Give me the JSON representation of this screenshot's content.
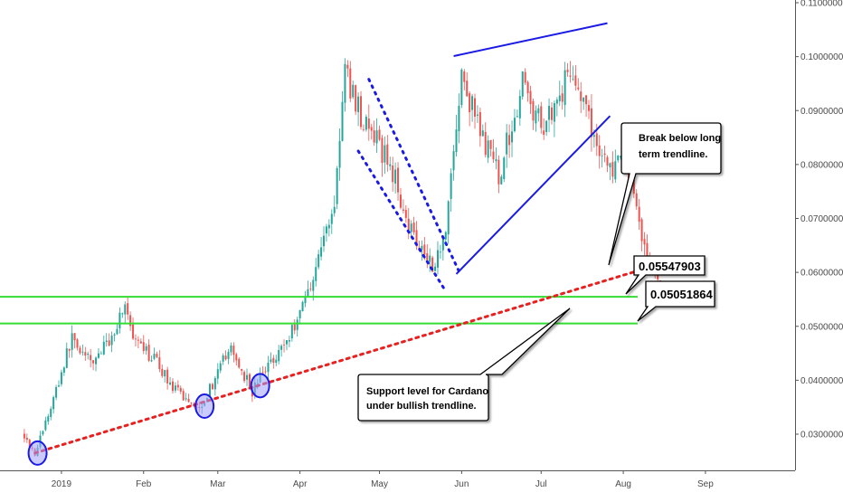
{
  "chart_data": {
    "type": "candlestick",
    "x_ticks": [
      "2019",
      "Feb",
      "Mar",
      "Apr",
      "May",
      "Jun",
      "Jul",
      "Aug",
      "Sep"
    ],
    "y_ticks": [
      "0.11000000",
      "0.10000000",
      "0.09000000",
      "0.08000000",
      "0.07000000",
      "0.06000000",
      "0.05000000",
      "0.04000000",
      "0.03000000"
    ],
    "ylim": [
      0.0228,
      0.1117
    ],
    "grid": false,
    "colors": {
      "up": "#26a69a",
      "down": "#ef5350",
      "support": "#33dd33",
      "trendline": "#e82020",
      "pattern": "#1a1ae6"
    },
    "anchors": [
      {
        "date": "2018-12-18",
        "value": 0.03
      },
      {
        "date": "2018-12-22",
        "value": 0.0265
      },
      {
        "date": "2018-12-28",
        "value": 0.035
      },
      {
        "date": "2019-01-05",
        "value": 0.048
      },
      {
        "date": "2019-01-12",
        "value": 0.043
      },
      {
        "date": "2019-01-20",
        "value": 0.048
      },
      {
        "date": "2019-01-25",
        "value": 0.0545
      },
      {
        "date": "2019-01-28",
        "value": 0.047
      },
      {
        "date": "2019-02-05",
        "value": 0.044
      },
      {
        "date": "2019-02-13",
        "value": 0.038
      },
      {
        "date": "2019-02-22",
        "value": 0.035
      },
      {
        "date": "2019-03-01",
        "value": 0.041
      },
      {
        "date": "2019-03-05",
        "value": 0.046
      },
      {
        "date": "2019-03-10",
        "value": 0.042
      },
      {
        "date": "2019-03-14",
        "value": 0.038
      },
      {
        "date": "2019-03-20",
        "value": 0.043
      },
      {
        "date": "2019-03-28",
        "value": 0.048
      },
      {
        "date": "2019-04-05",
        "value": 0.058
      },
      {
        "date": "2019-04-14",
        "value": 0.073
      },
      {
        "date": "2019-04-18",
        "value": 0.097
      },
      {
        "date": "2019-04-25",
        "value": 0.088
      },
      {
        "date": "2019-05-05",
        "value": 0.08
      },
      {
        "date": "2019-05-13",
        "value": 0.068
      },
      {
        "date": "2019-05-22",
        "value": 0.061
      },
      {
        "date": "2019-05-26",
        "value": 0.069
      },
      {
        "date": "2019-06-01",
        "value": 0.096
      },
      {
        "date": "2019-06-08",
        "value": 0.086
      },
      {
        "date": "2019-06-15",
        "value": 0.078
      },
      {
        "date": "2019-06-24",
        "value": 0.095
      },
      {
        "date": "2019-07-01",
        "value": 0.087
      },
      {
        "date": "2019-07-08",
        "value": 0.093
      },
      {
        "date": "2019-07-13",
        "value": 0.098
      },
      {
        "date": "2019-07-18",
        "value": 0.089
      },
      {
        "date": "2019-07-22",
        "value": 0.084
      },
      {
        "date": "2019-07-27",
        "value": 0.079
      },
      {
        "date": "2019-08-01",
        "value": 0.08
      },
      {
        "date": "2019-08-05",
        "value": 0.075
      },
      {
        "date": "2019-08-10",
        "value": 0.062
      },
      {
        "date": "2019-08-14",
        "value": 0.059
      },
      {
        "date": "2019-08-15",
        "value": 0.0585
      }
    ],
    "support_levels": [
      0.05547903,
      0.05051864
    ],
    "price_labels": [
      "0.05547903",
      "0.05051864"
    ],
    "uptrend_line": {
      "start": {
        "date": "2018-12-22",
        "value": 0.0265
      },
      "end": {
        "date": "2019-08-18",
        "value": 0.062
      }
    },
    "channel_lines": [
      {
        "start": {
          "date": "2019-04-27",
          "value": 0.0958
        },
        "end": {
          "date": "2019-05-31",
          "value": 0.0602
        }
      },
      {
        "start": {
          "date": "2019-04-23",
          "value": 0.0825
        },
        "end": {
          "date": "2019-05-26",
          "value": 0.0565
        }
      }
    ],
    "wedge_lines": [
      {
        "start": {
          "date": "2019-05-29",
          "value": 0.1001
        },
        "end": {
          "date": "2019-07-26",
          "value": 0.1062
        }
      },
      {
        "start": {
          "date": "2019-05-30",
          "value": 0.0597
        },
        "end": {
          "date": "2019-07-27",
          "value": 0.089
        }
      }
    ],
    "circled_lows": [
      {
        "date": "2018-12-23",
        "value": 0.0265
      },
      {
        "date": "2019-02-24",
        "value": 0.0352
      },
      {
        "date": "2019-03-17",
        "value": 0.039
      }
    ],
    "annotations": [
      {
        "text_lines": [
          "Break below long",
          "term trendline."
        ]
      },
      {
        "text_lines": [
          "Support level for Cardano",
          "under bullish trendline."
        ]
      }
    ]
  }
}
